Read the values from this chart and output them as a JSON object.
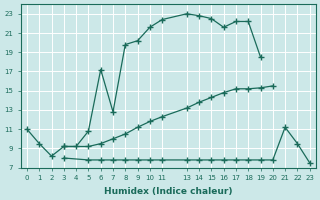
{
  "xlabel": "Humidex (Indice chaleur)",
  "bg_color": "#cce8e8",
  "grid_color": "#ffffff",
  "line_color": "#1a6b5a",
  "line1_x": [
    0,
    1,
    2,
    3,
    4,
    5,
    6,
    7,
    8,
    9,
    10,
    11,
    13,
    14,
    15,
    16,
    17,
    18,
    19
  ],
  "line1_y": [
    11,
    9.5,
    8.2,
    9.2,
    9.2,
    10.8,
    17.2,
    12.8,
    19.8,
    20.2,
    21.6,
    22.4,
    23.0,
    22.8,
    22.5,
    21.6,
    22.2,
    22.2,
    18.5
  ],
  "line2_x": [
    3,
    5,
    6,
    7,
    8,
    9,
    10,
    11,
    13,
    14,
    15,
    16,
    17,
    18,
    19,
    20
  ],
  "line2_y": [
    9.2,
    9.2,
    9.5,
    10.0,
    10.5,
    11.2,
    11.8,
    12.3,
    13.2,
    13.8,
    14.3,
    14.8,
    15.2,
    15.2,
    15.3,
    15.5
  ],
  "line3_x": [
    3,
    5,
    6,
    7,
    8,
    9,
    10,
    11,
    13,
    14,
    15,
    16,
    17,
    18,
    19,
    20,
    21,
    22,
    23
  ],
  "line3_y": [
    8.0,
    7.8,
    7.8,
    7.8,
    7.8,
    7.8,
    7.8,
    7.8,
    7.8,
    7.8,
    7.8,
    7.8,
    7.8,
    7.8,
    7.8,
    7.8,
    11.2,
    9.5,
    7.5
  ],
  "ylim": [
    7,
    24
  ],
  "yticks": [
    7,
    9,
    11,
    13,
    15,
    17,
    19,
    21,
    23
  ],
  "xlim": [
    -0.5,
    23.5
  ],
  "xticks": [
    0,
    1,
    2,
    3,
    4,
    5,
    6,
    7,
    8,
    9,
    10,
    11,
    13,
    14,
    15,
    16,
    17,
    18,
    19,
    20,
    21,
    22,
    23
  ]
}
